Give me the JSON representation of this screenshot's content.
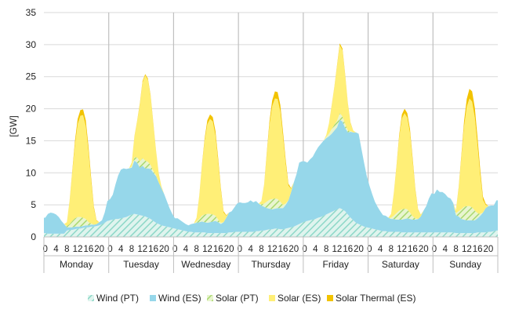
{
  "chart_data": {
    "type": "area",
    "title": "",
    "xlabel": "",
    "ylabel": "[GW]",
    "ylim": [
      0,
      35
    ],
    "yticks": [
      0,
      5,
      10,
      15,
      20,
      25,
      30,
      35
    ],
    "hour_ticks": [
      "0",
      "4",
      "8",
      "12",
      "16",
      "20"
    ],
    "days": [
      "Monday",
      "Tuesday",
      "Wednesday",
      "Thursday",
      "Friday",
      "Saturday",
      "Sunday"
    ],
    "hours_per_day": 24,
    "stacking": "cumulative",
    "legend_position": "bottom",
    "grid": "horizontal",
    "colors": {
      "wind_pt": "#8ed8c8",
      "wind_es": "#96d7ea",
      "solar_pt": "#a9d86e",
      "solar_es": "#ffef77",
      "solar_thermal_es": "#f2c300"
    },
    "series": [
      {
        "name": "Wind (PT)",
        "color": "#8ed8c8",
        "pattern": "hatched",
        "values": [
          [
            0.6,
            0.5,
            0.5,
            0.5,
            0.5,
            0.5,
            0.5,
            0.5,
            1.0,
            1.1,
            1.1,
            1.2,
            1.3,
            1.3,
            1.4,
            1.5,
            1.5,
            1.6,
            1.6,
            1.7,
            1.8,
            2.0,
            2.2,
            2.5
          ],
          [
            2.6,
            2.7,
            2.8,
            2.8,
            2.9,
            3.0,
            3.1,
            3.3,
            3.5,
            3.6,
            3.5,
            3.4,
            3.3,
            3.2,
            3.0,
            2.8,
            2.5,
            2.2,
            2.0,
            1.8,
            1.7,
            1.6,
            1.5,
            1.4
          ],
          [
            1.3,
            1.2,
            1.1,
            1.0,
            0.9,
            0.8,
            0.8,
            0.7,
            0.7,
            0.7,
            0.7,
            0.7,
            0.6,
            0.6,
            0.6,
            0.6,
            0.6,
            0.6,
            0.6,
            0.6,
            0.7,
            0.7,
            0.8,
            0.8
          ],
          [
            0.8,
            0.8,
            0.8,
            0.8,
            0.8,
            0.8,
            0.9,
            0.9,
            1.0,
            1.0,
            1.1,
            1.2,
            1.2,
            1.3,
            1.3,
            1.2,
            1.2,
            1.3,
            1.4,
            1.5,
            1.6,
            1.8,
            2.0,
            2.2
          ],
          [
            2.4,
            2.5,
            2.6,
            2.7,
            2.8,
            3.0,
            3.1,
            3.3,
            3.5,
            3.7,
            3.9,
            4.1,
            4.3,
            4.5,
            4.3,
            4.0,
            3.5,
            3.0,
            2.6,
            2.2,
            2.0,
            1.8,
            1.6,
            1.5
          ],
          [
            1.4,
            1.3,
            1.2,
            1.1,
            1.0,
            0.9,
            0.9,
            0.8,
            0.8,
            0.8,
            0.8,
            0.8,
            0.7,
            0.7,
            0.7,
            0.7,
            0.7,
            0.7,
            0.7,
            0.7,
            0.7,
            0.7,
            0.7,
            0.7
          ],
          [
            0.7,
            0.7,
            0.7,
            0.7,
            0.7,
            0.7,
            0.7,
            0.7,
            0.6,
            0.6,
            0.6,
            0.6,
            0.6,
            0.6,
            0.6,
            0.6,
            0.7,
            0.7,
            0.7,
            0.7,
            0.8,
            0.8,
            0.9,
            1.0
          ]
        ]
      },
      {
        "name": "Wind (ES)",
        "color": "#96d7ea",
        "values": [
          [
            2.4,
            3.1,
            3.3,
            3.2,
            3.0,
            2.6,
            2.0,
            1.5,
            0.5,
            0.4,
            0.4,
            0.4,
            0.3,
            0.3,
            0.3,
            0.3,
            0.3,
            0.3,
            0.3,
            0.3,
            0.5,
            0.6,
            1.6,
            3.1
          ],
          [
            3.3,
            3.9,
            5.4,
            6.8,
            7.6,
            7.7,
            7.5,
            7.4,
            7.3,
            8.3,
            8.1,
            7.4,
            7.8,
            7.5,
            7.7,
            7.8,
            7.5,
            7.3,
            6.5,
            5.8,
            5.0,
            4.0,
            3.0,
            2.2
          ],
          [
            1.6,
            1.7,
            1.5,
            1.3,
            1.1,
            1.0,
            1.2,
            1.4,
            1.5,
            1.6,
            1.7,
            1.6,
            1.6,
            1.7,
            1.8,
            1.9,
            1.7,
            1.4,
            1.7,
            2.4,
            3.1,
            3.3,
            3.8,
            4.4
          ],
          [
            4.6,
            4.5,
            4.5,
            4.6,
            4.9,
            4.6,
            4.7,
            4.3,
            3.9,
            3.7,
            3.4,
            3.2,
            3.1,
            3.1,
            3.2,
            3.3,
            3.3,
            3.7,
            4.3,
            5.5,
            6.9,
            8.0,
            9.6,
            9.6
          ],
          [
            9.4,
            9.1,
            9.5,
            9.8,
            10.5,
            11.0,
            11.4,
            11.7,
            11.9,
            12.0,
            12.2,
            12.5,
            12.8,
            13.8,
            13.7,
            13.0,
            12.8,
            13.4,
            13.7,
            14.1,
            14.1,
            12.0,
            10.0,
            8.0
          ],
          [
            6.6,
            5.4,
            4.3,
            3.6,
            3.0,
            2.5,
            2.4,
            2.2,
            2.0,
            2.0,
            1.9,
            1.9,
            2.0,
            2.1,
            2.2,
            2.1,
            2.0,
            2.0,
            2.1,
            2.5,
            3.4,
            4.1,
            5.3,
            6.1
          ],
          [
            6.0,
            6.7,
            6.3,
            6.3,
            6.0,
            5.5,
            5.3,
            4.6,
            2.8,
            2.6,
            2.2,
            2.1,
            2.0,
            2.0,
            2.0,
            2.0,
            2.2,
            2.6,
            3.1,
            3.8,
            4.0,
            4.1,
            4.0,
            4.7
          ]
        ]
      },
      {
        "name": "Solar (PT)",
        "color": "#a9d86e",
        "pattern": "hatched",
        "values": [
          [
            0,
            0,
            0,
            0,
            0,
            0,
            0,
            0,
            0.2,
            0.5,
            1.0,
            1.3,
            1.5,
            1.5,
            1.3,
            1.0,
            0.5,
            0.2,
            0,
            0,
            0,
            0,
            0,
            0
          ],
          [
            0,
            0,
            0,
            0,
            0,
            0,
            0,
            0,
            0.2,
            0.5,
            0.8,
            1.0,
            1.2,
            1.2,
            1.0,
            0.6,
            0.3,
            0.1,
            0,
            0,
            0,
            0,
            0,
            0
          ],
          [
            0,
            0,
            0,
            0,
            0,
            0,
            0,
            0,
            0.2,
            0.5,
            0.9,
            1.2,
            1.4,
            1.3,
            1.1,
            0.8,
            0.4,
            0.2,
            0,
            0,
            0,
            0,
            0,
            0
          ],
          [
            0,
            0,
            0,
            0,
            0,
            0,
            0,
            0,
            0.2,
            0.5,
            1.0,
            1.4,
            1.6,
            1.6,
            1.4,
            1.0,
            0.5,
            0.2,
            0,
            0,
            0,
            0,
            0,
            0
          ],
          [
            0,
            0,
            0,
            0,
            0,
            0,
            0,
            0,
            0.2,
            0.4,
            0.7,
            0.9,
            1.0,
            1.0,
            0.8,
            0.6,
            0.3,
            0.1,
            0,
            0,
            0,
            0,
            0,
            0
          ],
          [
            0,
            0,
            0,
            0,
            0,
            0,
            0,
            0,
            0.2,
            0.5,
            1.0,
            1.4,
            1.6,
            1.6,
            1.4,
            1.0,
            0.5,
            0.2,
            0,
            0,
            0,
            0,
            0,
            0
          ],
          [
            0,
            0,
            0,
            0,
            0,
            0,
            0,
            0,
            0.3,
            0.8,
            1.5,
            2.0,
            2.2,
            2.2,
            2.0,
            1.5,
            0.8,
            0.3,
            0,
            0,
            0,
            0,
            0,
            0
          ]
        ]
      },
      {
        "name": "Solar (ES)",
        "color": "#ffef77",
        "values": [
          [
            0,
            0,
            0,
            0,
            0,
            0,
            0,
            0,
            0.6,
            3.5,
            7.5,
            11.5,
            14.5,
            15.8,
            16.0,
            14.5,
            11.0,
            6.5,
            2.5,
            0.5,
            0,
            0,
            0,
            0
          ],
          [
            0,
            0,
            0,
            0,
            0,
            0,
            0,
            0,
            0.6,
            3.2,
            5.6,
            8.8,
            11.8,
            13.3,
            12.8,
            10.7,
            7.3,
            3.8,
            1.3,
            0.3,
            0,
            0,
            0,
            0
          ],
          [
            0,
            0,
            0,
            0,
            0,
            0,
            0,
            0,
            0.6,
            3.5,
            7.8,
            11.5,
            14.0,
            14.8,
            14.5,
            12.5,
            9.0,
            5.0,
            1.5,
            0.3,
            0,
            0,
            0,
            0
          ],
          [
            0,
            0,
            0,
            0,
            0,
            0,
            0,
            0,
            0.5,
            2.8,
            7.4,
            11.7,
            14.5,
            15.6,
            15.6,
            14.1,
            10.6,
            6.2,
            2.3,
            0.5,
            0,
            0,
            0,
            0
          ],
          [
            0,
            0,
            0,
            0,
            0,
            0,
            0,
            0,
            0.3,
            1.6,
            3.6,
            5.8,
            8.5,
            10.6,
            10.3,
            7.6,
            4.2,
            1.2,
            0.3,
            0,
            0,
            0,
            0,
            0
          ],
          [
            0,
            0,
            0,
            0,
            0,
            0,
            0,
            0,
            0.6,
            3.4,
            7.2,
            11.4,
            14.2,
            14.9,
            14.3,
            12.4,
            8.5,
            4.2,
            1.4,
            0.3,
            0,
            0,
            0,
            0
          ],
          [
            0,
            0,
            0,
            0,
            0,
            0,
            0,
            0,
            0.5,
            3.5,
            8.0,
            12.5,
            15.5,
            16.8,
            16.5,
            14.5,
            10.5,
            6.0,
            2.0,
            0.5,
            0,
            0,
            0,
            0
          ]
        ]
      },
      {
        "name": "Solar Thermal (ES)",
        "color": "#f2c300",
        "values": [
          [
            0,
            0,
            0,
            0,
            0,
            0,
            0,
            0,
            0,
            0.1,
            0.3,
            0.6,
            0.8,
            0.9,
            0.9,
            0.9,
            0.8,
            0.6,
            0.3,
            0.1,
            0,
            0,
            0,
            0
          ],
          [
            0,
            0,
            0,
            0,
            0,
            0,
            0,
            0,
            0,
            0.1,
            0.1,
            0.2,
            0.2,
            0.2,
            0.2,
            0.2,
            0.2,
            0.1,
            0.1,
            0,
            0,
            0,
            0,
            0
          ],
          [
            0,
            0,
            0,
            0,
            0,
            0,
            0,
            0,
            0,
            0.1,
            0.2,
            0.4,
            0.6,
            0.7,
            0.7,
            0.7,
            0.6,
            0.4,
            0.2,
            0.1,
            0,
            0,
            0,
            0
          ],
          [
            0,
            0,
            0,
            0,
            0,
            0,
            0,
            0,
            0,
            0.1,
            0.3,
            0.6,
            0.9,
            1.1,
            1.1,
            1.0,
            0.8,
            0.6,
            0.3,
            0.1,
            0,
            0,
            0,
            0
          ],
          [
            0,
            0,
            0,
            0,
            0,
            0,
            0,
            0,
            0,
            0,
            0.1,
            0.1,
            0.2,
            0.3,
            0.3,
            0.2,
            0.1,
            0.1,
            0,
            0,
            0,
            0,
            0,
            0
          ],
          [
            0,
            0,
            0,
            0,
            0,
            0,
            0,
            0,
            0,
            0.1,
            0.2,
            0.4,
            0.6,
            0.7,
            0.7,
            0.6,
            0.5,
            0.3,
            0.1,
            0,
            0,
            0,
            0,
            0
          ],
          [
            0,
            0,
            0,
            0,
            0,
            0,
            0,
            0,
            0,
            0.2,
            0.4,
            0.8,
            1.2,
            1.5,
            1.6,
            1.5,
            1.3,
            0.9,
            0.5,
            0.2,
            0,
            0,
            0,
            0
          ]
        ]
      }
    ]
  }
}
